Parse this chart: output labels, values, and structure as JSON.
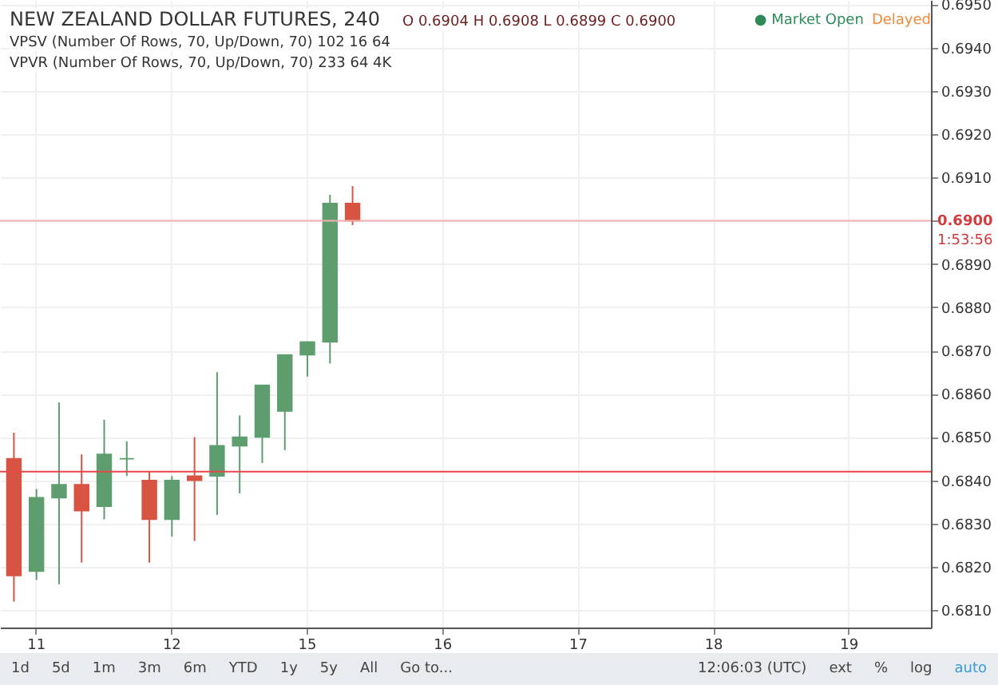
{
  "chart_data": {
    "type": "candlestick",
    "title": "NEW ZEALAND DOLLAR FUTURES, 240",
    "categories": [
      null,
      "11",
      null,
      null,
      null,
      null,
      null,
      "12",
      null,
      null,
      null,
      null,
      null,
      "15",
      null,
      null,
      null,
      null,
      null,
      "16",
      null,
      null,
      null,
      null,
      null,
      "17",
      null,
      null,
      null,
      null,
      null,
      "18",
      null,
      null,
      null,
      null,
      null,
      "19",
      null,
      null,
      null
    ],
    "ohlc": [
      [
        0.6845,
        0.6851,
        0.6812,
        0.6818
      ],
      [
        0.6819,
        0.6838,
        0.6817,
        0.6836
      ],
      [
        0.6836,
        0.6858,
        0.6816,
        0.6839
      ],
      [
        0.6839,
        0.6846,
        0.6821,
        0.6833
      ],
      [
        0.6834,
        0.6854,
        0.6831,
        0.6846
      ],
      [
        0.6845,
        0.6849,
        0.6841,
        0.6845
      ],
      [
        0.684,
        0.6842,
        0.6821,
        0.6831
      ],
      [
        0.6831,
        0.6841,
        0.6827,
        0.684
      ],
      [
        0.6841,
        0.685,
        0.6826,
        0.684
      ],
      [
        0.6841,
        0.6865,
        0.6832,
        0.6848
      ],
      [
        0.6848,
        0.6855,
        0.6837,
        0.685
      ],
      [
        0.685,
        0.6862,
        0.6844,
        0.6862
      ],
      [
        0.6856,
        0.6869,
        0.6847,
        0.6869
      ],
      [
        0.6869,
        0.6872,
        0.6864,
        0.6872
      ],
      [
        0.6872,
        0.6906,
        0.6867,
        0.6904
      ],
      [
        0.6904,
        0.6908,
        0.6899,
        0.69
      ],
      null,
      null,
      null,
      null,
      null,
      null,
      null,
      null,
      null,
      null,
      null,
      null,
      null,
      null,
      null,
      null,
      null,
      null,
      null,
      null,
      null,
      null,
      null,
      null,
      null
    ],
    "colors": [
      "#d75442",
      "#5e9e6e",
      "#5e9e6e",
      "#d75442",
      "#5e9e6e",
      "#5e9e6e",
      "#d75442",
      "#5e9e6e",
      "#d75442",
      "#5e9e6e",
      "#5e9e6e",
      "#5e9e6e",
      "#5e9e6e",
      "#5e9e6e",
      "#5e9e6e",
      "#d75442",
      null,
      null,
      null,
      null,
      null,
      null,
      null,
      null,
      null,
      null,
      null,
      null,
      null,
      null,
      null,
      null,
      null,
      null,
      null,
      null,
      null,
      null,
      null,
      null,
      null
    ],
    "ylim": [
      0.6806,
      0.6951
    ],
    "yticks": [
      {
        "value": 0.681,
        "label": "0.6810"
      },
      {
        "value": 0.682,
        "label": "0.6820"
      },
      {
        "value": 0.683,
        "label": "0.6830"
      },
      {
        "value": 0.684,
        "label": "0.6840"
      },
      {
        "value": 0.685,
        "label": "0.6850"
      },
      {
        "value": 0.686,
        "label": "0.6860"
      },
      {
        "value": 0.687,
        "label": "0.6870"
      },
      {
        "value": 0.688,
        "label": "0.6880"
      },
      {
        "value": 0.689,
        "label": "0.6890"
      },
      {
        "value": 0.69,
        "label": null
      },
      {
        "value": 0.691,
        "label": "0.6910"
      },
      {
        "value": 0.692,
        "label": "0.6920"
      },
      {
        "value": 0.693,
        "label": "0.6930"
      },
      {
        "value": 0.694,
        "label": "0.6940"
      },
      {
        "value": 0.695,
        "label": "0.6950"
      }
    ],
    "grid": true,
    "ref_lines": [
      {
        "axis": "y",
        "value": 0.69,
        "label": "0.6900",
        "color": "#f4b0b0"
      },
      {
        "axis": "y",
        "value": 0.6842,
        "color": "#e8474a"
      }
    ],
    "annotations": [
      "O 0.6904 H 0.6908 L 0.6899 C 0.6900",
      "VPSV (Number Of Rows, 70, Up/Down, 70) 102 16 64",
      "VPVR (Number Of Rows, 70, Up/Down, 70) 233 64 4K",
      "● Market Open",
      "Delayed",
      "1:53:56",
      "1d",
      "5d",
      "1m",
      "3m",
      "6m",
      "YTD",
      "1y",
      "5y",
      "All",
      "Go to...",
      "12:06:03 (UTC)",
      "ext",
      "%",
      "log",
      "auto"
    ]
  }
}
